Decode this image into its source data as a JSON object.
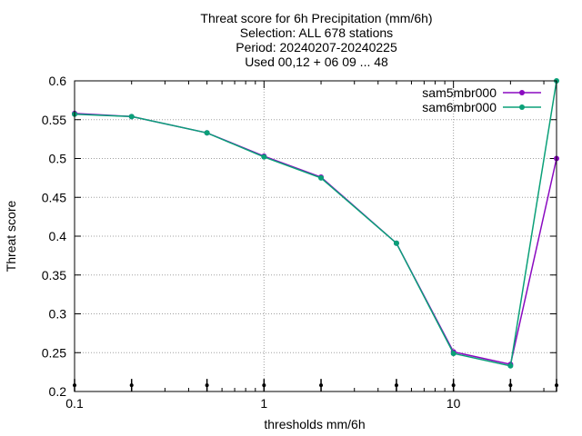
{
  "chart_data": {
    "type": "line",
    "title_lines": [
      "Threat score  for 6h Precipitation (mm/6h)",
      "Selection: ALL    678 stations",
      "Period: 20240207-20240225",
      "Used 00,12 + 06 09 ... 48"
    ],
    "xlabel": "thresholds mm/6h",
    "ylabel": "Threat score",
    "x_scale": "log",
    "xlim": [
      0.1,
      35
    ],
    "ylim": [
      0.2,
      0.6
    ],
    "x_ticks": [
      0.1,
      1,
      10
    ],
    "x_tick_labels": [
      "0.1",
      "1",
      "10"
    ],
    "y_ticks": [
      0.2,
      0.25,
      0.3,
      0.35,
      0.4,
      0.45,
      0.5,
      0.55,
      0.6
    ],
    "y_tick_labels": [
      "0.2",
      "0.25",
      "0.3",
      "0.35",
      "0.4",
      "0.45",
      "0.5",
      "0.55",
      "0.6"
    ],
    "grid": true,
    "legend_position": "top-right",
    "x": [
      0.1,
      0.2,
      0.5,
      1,
      2,
      5,
      10,
      20,
      35
    ],
    "series": [
      {
        "name": "sam5mbr000",
        "color": "#8a0ac0",
        "values": [
          0.558,
          0.554,
          0.533,
          0.503,
          0.476,
          0.391,
          0.251,
          0.235,
          0.5
        ]
      },
      {
        "name": "sam6mbr000",
        "color": "#0aa078",
        "values": [
          0.557,
          0.554,
          0.533,
          0.502,
          0.475,
          0.391,
          0.249,
          0.233,
          0.6
        ]
      }
    ],
    "marker_row": {
      "x": [
        0.1,
        0.2,
        0.5,
        1,
        2,
        5,
        10,
        20,
        35
      ],
      "y": 0.208
    }
  }
}
